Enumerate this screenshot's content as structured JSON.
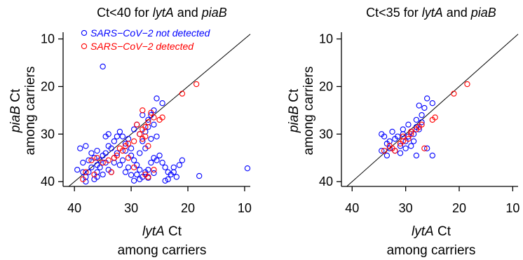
{
  "chart_data": [
    {
      "type": "scatter",
      "title_parts": [
        "Ct<40 for ",
        "lytA",
        " and ",
        "piaB"
      ],
      "xlabel_parts": [
        "lytA",
        " Ct"
      ],
      "xlabel_line2": "among carriers",
      "ylabel_parts": [
        "piaB",
        " Ct"
      ],
      "ylabel_line2": "among carriers",
      "xlim": [
        42,
        9
      ],
      "ylim": [
        41,
        8
      ],
      "xticks": [
        40,
        30,
        20,
        10
      ],
      "yticks": [
        10,
        20,
        30,
        40
      ],
      "reference_line": "y = x",
      "grid": false,
      "legend_position": "top-left",
      "series": [
        {
          "name": "SARS−CoV−2 not detected",
          "color": "#0000ff",
          "points": [
            [
              35.0,
              15.8
            ],
            [
              39.5,
              37.5
            ],
            [
              38.5,
              36.0
            ],
            [
              39.0,
              33.0
            ],
            [
              38.0,
              32.5
            ],
            [
              37.0,
              34.0
            ],
            [
              36.5,
              35.0
            ],
            [
              35.5,
              35.5
            ],
            [
              35.0,
              34.5
            ],
            [
              34.5,
              36.0
            ],
            [
              36.0,
              36.5
            ],
            [
              37.5,
              38.0
            ],
            [
              38.0,
              39.0
            ],
            [
              36.5,
              39.5
            ],
            [
              35.0,
              38.5
            ],
            [
              34.0,
              37.5
            ],
            [
              33.5,
              38.0
            ],
            [
              33.0,
              35.0
            ],
            [
              33.5,
              33.0
            ],
            [
              34.0,
              30.0
            ],
            [
              34.5,
              30.5
            ],
            [
              33.0,
              31.5
            ],
            [
              32.0,
              29.5
            ],
            [
              31.5,
              30.5
            ],
            [
              31.0,
              32.0
            ],
            [
              32.5,
              34.0
            ],
            [
              31.5,
              35.5
            ],
            [
              30.5,
              37.0
            ],
            [
              31.0,
              38.0
            ],
            [
              30.0,
              34.5
            ],
            [
              29.5,
              35.5
            ],
            [
              29.0,
              36.5
            ],
            [
              28.5,
              37.5
            ],
            [
              29.0,
              38.5
            ],
            [
              28.5,
              39.5
            ],
            [
              28.0,
              39.0
            ],
            [
              27.5,
              38.0
            ],
            [
              27.0,
              37.5
            ],
            [
              26.5,
              36.0
            ],
            [
              26.0,
              35.0
            ],
            [
              25.5,
              35.5
            ],
            [
              25.0,
              34.5
            ],
            [
              24.5,
              36.0
            ],
            [
              24.0,
              37.0
            ],
            [
              23.5,
              38.0
            ],
            [
              23.0,
              38.5
            ],
            [
              23.5,
              39.5
            ],
            [
              22.5,
              37.0
            ],
            [
              21.5,
              36.5
            ],
            [
              21.0,
              35.5
            ],
            [
              18.0,
              38.8
            ],
            [
              9.5,
              37.2
            ],
            [
              28.5,
              30.0
            ],
            [
              28.0,
              31.5
            ],
            [
              27.5,
              29.5
            ],
            [
              27.0,
              28.5
            ],
            [
              26.5,
              26.0
            ],
            [
              26.0,
              25.0
            ],
            [
              25.5,
              22.5
            ],
            [
              24.5,
              23.5
            ],
            [
              29.5,
              29.0
            ],
            [
              30.5,
              31.0
            ],
            [
              32.5,
              30.5
            ],
            [
              30.0,
              33.0
            ],
            [
              31.0,
              33.5
            ],
            [
              32.0,
              36.5
            ],
            [
              34.0,
              32.5
            ],
            [
              36.0,
              33.5
            ],
            [
              37.5,
              35.5
            ],
            [
              35.5,
              37.0
            ],
            [
              29.5,
              39.8
            ],
            [
              27.0,
              39.2
            ],
            [
              26.0,
              38.2
            ],
            [
              30.0,
              38.6
            ],
            [
              28.5,
              34.0
            ],
            [
              27.5,
              33.0
            ],
            [
              26.5,
              31.0
            ],
            [
              25.5,
              30.5
            ],
            [
              26.0,
              28.0
            ],
            [
              27.0,
              27.0
            ],
            [
              28.0,
              26.0
            ],
            [
              29.0,
              28.0
            ],
            [
              33.0,
              36.0
            ],
            [
              34.5,
              34.0
            ],
            [
              36.0,
              38.0
            ],
            [
              37.0,
              37.0
            ],
            [
              38.5,
              38.0
            ],
            [
              38.0,
              40.0
            ],
            [
              36.0,
              39.0
            ],
            [
              24.0,
              39.8
            ],
            [
              22.0,
              39.0
            ],
            [
              22.5,
              38.0
            ]
          ]
        },
        {
          "name": "SARS−CoV−2 detected",
          "color": "#ff0000",
          "points": [
            [
              18.5,
              19.5
            ],
            [
              21.0,
              21.5
            ],
            [
              24.5,
              26.5
            ],
            [
              25.0,
              27.0
            ],
            [
              26.0,
              26.5
            ],
            [
              27.0,
              27.5
            ],
            [
              27.5,
              28.5
            ],
            [
              28.0,
              29.0
            ],
            [
              29.0,
              28.0
            ],
            [
              28.5,
              30.0
            ],
            [
              27.5,
              30.5
            ],
            [
              28.0,
              31.0
            ],
            [
              29.5,
              31.5
            ],
            [
              30.5,
              32.0
            ],
            [
              31.0,
              32.5
            ],
            [
              32.0,
              33.0
            ],
            [
              31.5,
              33.5
            ],
            [
              32.5,
              34.5
            ],
            [
              33.0,
              35.0
            ],
            [
              34.0,
              35.5
            ],
            [
              35.0,
              36.0
            ],
            [
              36.0,
              35.0
            ],
            [
              37.0,
              35.5
            ],
            [
              36.5,
              38.5
            ],
            [
              38.0,
              38.0
            ],
            [
              38.5,
              39.5
            ],
            [
              27.0,
              39.0
            ],
            [
              29.5,
              37.0
            ],
            [
              30.5,
              35.0
            ],
            [
              33.5,
              38.0
            ],
            [
              27.0,
              32.5
            ],
            [
              28.0,
              25.0
            ],
            [
              26.5,
              25.5
            ],
            [
              26.0,
              37.5
            ],
            [
              27.5,
              38.5
            ]
          ]
        }
      ]
    },
    {
      "type": "scatter",
      "title_parts": [
        "Ct<35 for ",
        "lytA",
        " and ",
        "piaB"
      ],
      "xlabel_parts": [
        "lytA",
        " Ct"
      ],
      "xlabel_line2": "among carriers",
      "ylabel_parts": [
        "piaB",
        " Ct"
      ],
      "ylabel_line2": "among carriers",
      "xlim": [
        42,
        9
      ],
      "ylim": [
        41,
        8
      ],
      "xticks": [
        40,
        30,
        20,
        10
      ],
      "yticks": [
        10,
        20,
        30,
        40
      ],
      "reference_line": "y = x",
      "grid": false,
      "series": [
        {
          "color": "#0000ff",
          "points": [
            [
              34.5,
              30.0
            ],
            [
              34.0,
              30.5
            ],
            [
              33.5,
              32.0
            ],
            [
              33.0,
              31.5
            ],
            [
              33.0,
              33.0
            ],
            [
              32.5,
              29.5
            ],
            [
              32.0,
              31.0
            ],
            [
              31.5,
              30.5
            ],
            [
              31.0,
              32.5
            ],
            [
              30.5,
              30.0
            ],
            [
              30.0,
              31.5
            ],
            [
              29.5,
              30.5
            ],
            [
              29.0,
              29.5
            ],
            [
              29.0,
              32.5
            ],
            [
              28.5,
              30.0
            ],
            [
              28.0,
              28.5
            ],
            [
              27.5,
              29.0
            ],
            [
              28.0,
              27.0
            ],
            [
              28.0,
              34.5
            ],
            [
              27.0,
              27.5
            ],
            [
              27.0,
              26.0
            ],
            [
              27.5,
              24.0
            ],
            [
              26.5,
              24.5
            ],
            [
              26.0,
              22.5
            ],
            [
              25.0,
              23.5
            ],
            [
              26.0,
              33.0
            ],
            [
              25.0,
              34.5
            ],
            [
              30.0,
              33.0
            ],
            [
              31.0,
              34.0
            ],
            [
              32.0,
              33.5
            ],
            [
              33.5,
              34.5
            ],
            [
              34.5,
              33.5
            ],
            [
              29.5,
              28.0
            ],
            [
              28.5,
              31.5
            ],
            [
              30.5,
              29.0
            ]
          ]
        },
        {
          "color": "#ff0000",
          "points": [
            [
              18.5,
              19.5
            ],
            [
              21.0,
              21.5
            ],
            [
              24.5,
              26.5
            ],
            [
              25.0,
              27.0
            ],
            [
              26.5,
              33.0
            ],
            [
              27.0,
              28.0
            ],
            [
              27.5,
              28.5
            ],
            [
              28.0,
              29.0
            ],
            [
              29.0,
              30.0
            ],
            [
              29.5,
              31.0
            ],
            [
              30.5,
              31.5
            ],
            [
              31.0,
              32.0
            ],
            [
              32.0,
              33.5
            ],
            [
              32.5,
              33.0
            ],
            [
              33.0,
              32.5
            ],
            [
              34.0,
              33.5
            ],
            [
              30.5,
              30.5
            ],
            [
              29.0,
              29.5
            ]
          ]
        }
      ]
    }
  ]
}
